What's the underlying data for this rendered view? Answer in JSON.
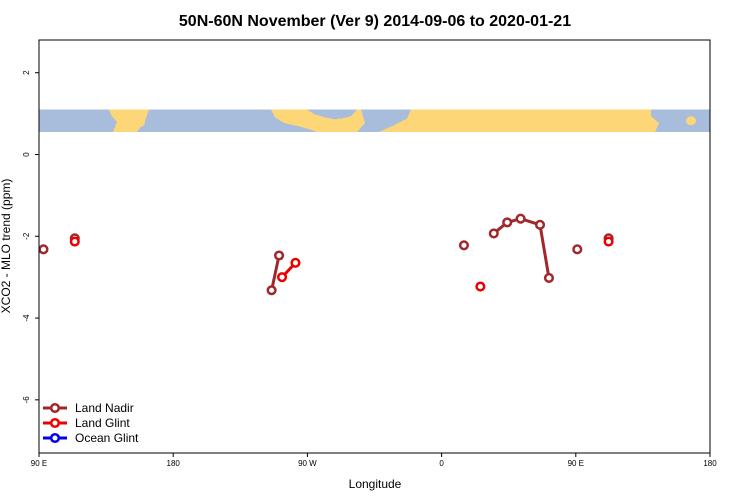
{
  "chart_data": {
    "type": "line",
    "title": "50N-60N November (Ver 9)   2014-09-06 to 2020-01-21",
    "xlabel": "Longitude",
    "ylabel": "XCO2 - MLO trend (ppm)",
    "x_tick_labels": [
      "90 E",
      "180",
      "90 W",
      "0",
      "90 E",
      "180"
    ],
    "x_tick_values": [
      90,
      180,
      270,
      360,
      450,
      540
    ],
    "xlim": [
      90,
      540
    ],
    "y_tick_values": [
      2,
      0,
      -2,
      -4,
      -6
    ],
    "y_tick_labels": [
      "2",
      "0",
      "-2",
      "-4",
      "-6"
    ],
    "ylim": [
      -7.3,
      2.8
    ],
    "grid": false,
    "legend_position": "bottom-left",
    "map_band": {
      "y_top": 1.1,
      "y_bottom": 0.55,
      "ocean_color": "#a8bcdc",
      "land_color": "#fdd777"
    },
    "series": [
      {
        "name": "Land Nadir",
        "color": "#a0282c",
        "segments": [
          [
            [
              93,
              -2.32
            ]
          ],
          [
            [
              114,
              -2.05
            ]
          ],
          [
            [
              246,
              -3.32
            ],
            [
              251,
              -2.47
            ]
          ],
          [
            [
              375,
              -2.22
            ]
          ],
          [
            [
              395,
              -1.93
            ],
            [
              404,
              -1.66
            ],
            [
              413,
              -1.57
            ],
            [
              426,
              -1.72
            ],
            [
              432,
              -3.02
            ]
          ],
          [
            [
              451,
              -2.32
            ]
          ],
          [
            [
              472,
              -2.05
            ]
          ]
        ]
      },
      {
        "name": "Land Glint",
        "color": "#ee0000",
        "segments": [
          [
            [
              114,
              -2.13
            ]
          ],
          [
            [
              253,
              -3.0
            ],
            [
              262,
              -2.65
            ]
          ],
          [
            [
              386,
              -3.23
            ]
          ],
          [
            [
              472,
              -2.13
            ]
          ]
        ]
      },
      {
        "name": "Ocean Glint",
        "color": "#0000ee",
        "segments": []
      }
    ]
  }
}
